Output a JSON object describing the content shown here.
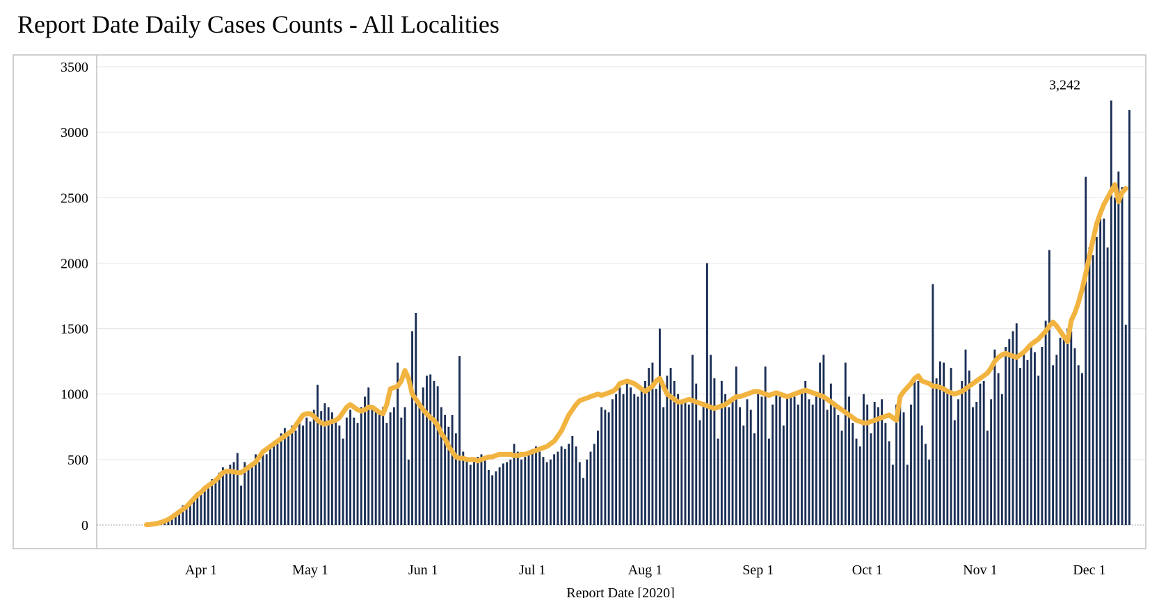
{
  "chart_data": {
    "type": "bar",
    "title": "Report Date Daily Cases Counts - All Localities",
    "xlabel": "Report Date [2020]",
    "ylabel": "",
    "ylim": [
      0,
      3500
    ],
    "y_ticks": [
      0,
      500,
      1000,
      1500,
      2000,
      2500,
      3000,
      3500
    ],
    "x_tick_labels": [
      "Apr 1",
      "May 1",
      "Jun 1",
      "Jul 1",
      "Aug 1",
      "Sep 1",
      "Oct 1",
      "Nov 1",
      "Dec 1"
    ],
    "x_tick_dates": [
      "2020-04-01",
      "2020-05-01",
      "2020-06-01",
      "2020-07-01",
      "2020-08-01",
      "2020-09-01",
      "2020-10-01",
      "2020-11-01",
      "2020-12-01"
    ],
    "start_date": "2020-03-17",
    "end_date": "2020-11-29",
    "grid": true,
    "annotation": {
      "date": "2020-11-25",
      "value": 3242,
      "label": "3,242"
    },
    "colors": {
      "bars": "#1b2f55",
      "line": "#f2b441",
      "grid": "#e6e6e6",
      "axis": "#bfbfbf"
    },
    "series": [
      {
        "type": "bar",
        "values": [
          2,
          3,
          8,
          12,
          20,
          30,
          40,
          60,
          90,
          110,
          150,
          140,
          180,
          210,
          250,
          230,
          280,
          320,
          350,
          330,
          400,
          440,
          390,
          460,
          480,
          550,
          300,
          480,
          430,
          470,
          540,
          480,
          560,
          540,
          600,
          640,
          620,
          700,
          740,
          700,
          760,
          720,
          780,
          760,
          820,
          790,
          880,
          1070,
          870,
          930,
          900,
          860,
          800,
          760,
          660,
          820,
          880,
          820,
          780,
          900,
          980,
          1050,
          900,
          880,
          860,
          900,
          780,
          860,
          900,
          1240,
          820,
          900,
          500,
          1480,
          1620,
          920,
          1050,
          1140,
          1150,
          1100,
          1060,
          900,
          840,
          750,
          840,
          700,
          1290,
          560,
          490,
          460,
          480,
          520,
          540,
          500,
          420,
          380,
          410,
          440,
          470,
          480,
          500,
          620,
          560,
          500,
          520,
          540,
          580,
          600,
          560,
          520,
          480,
          500,
          540,
          560,
          600,
          580,
          620,
          680,
          600,
          480,
          360,
          500,
          560,
          620,
          720,
          900,
          880,
          860,
          960,
          1000,
          1050,
          1000,
          1100,
          1050,
          1000,
          980,
          1040,
          1100,
          1200,
          1240,
          1040,
          1500,
          900,
          1140,
          1200,
          1100,
          1000,
          940,
          960,
          920,
          1300,
          1080,
          800,
          940,
          2000,
          1300,
          1120,
          660,
          1100,
          1000,
          900,
          960,
          1210,
          900,
          760,
          960,
          880,
          700,
          1000,
          980,
          1210,
          660,
          920,
          1020,
          980,
          760,
          1000,
          980,
          980,
          920,
          1040,
          1100,
          960,
          920,
          980,
          1240,
          1300,
          880,
          1080,
          940,
          840,
          720,
          1240,
          980,
          780,
          660,
          600,
          1000,
          920,
          700,
          940,
          900,
          960,
          780,
          640,
          460,
          920,
          1000,
          860,
          460,
          920,
          1120,
          1100,
          760,
          620,
          500,
          1840,
          1120,
          1250,
          1240,
          1040,
          1200,
          800,
          960,
          1100,
          1340,
          1180,
          900,
          940,
          1080,
          1100,
          720,
          960,
          1340,
          1160,
          1000,
          1360,
          1420,
          1480,
          1540,
          1200,
          1320,
          1260,
          1400,
          1320,
          1140,
          1360,
          1560,
          2100,
          1220,
          1300,
          1430,
          1460,
          1500,
          1480,
          1350,
          1220,
          1160,
          2660,
          2120,
          2060,
          2200,
          2340,
          2340,
          2120,
          3242,
          2500,
          2700,
          2580,
          1530,
          3170
        ]
      },
      {
        "type": "line",
        "values": [
          2,
          4,
          8,
          12,
          20,
          30,
          42,
          60,
          80,
          100,
          120,
          140,
          170,
          200,
          230,
          250,
          280,
          300,
          320,
          340,
          370,
          400,
          410,
          410,
          405,
          400,
          400,
          420,
          440,
          460,
          480,
          520,
          560,
          580,
          600,
          620,
          640,
          660,
          680,
          700,
          720,
          760,
          800,
          840,
          850,
          850,
          830,
          800,
          780,
          770,
          780,
          790,
          800,
          820,
          860,
          900,
          920,
          900,
          880,
          870,
          880,
          900,
          900,
          880,
          860,
          850,
          920,
          1040,
          1050,
          1060,
          1100,
          1180,
          1120,
          1000,
          960,
          920,
          880,
          850,
          820,
          800,
          760,
          700,
          660,
          600,
          560,
          520,
          510,
          510,
          500,
          500,
          500,
          490,
          500,
          510,
          520,
          520,
          530,
          540,
          540,
          540,
          540,
          530,
          530,
          540,
          540,
          550,
          560,
          570,
          580,
          590,
          600,
          620,
          640,
          680,
          720,
          780,
          840,
          880,
          920,
          950,
          960,
          970,
          980,
          990,
          1000,
          990,
          1000,
          1010,
          1020,
          1040,
          1080,
          1090,
          1100,
          1090,
          1080,
          1060,
          1040,
          1020,
          1040,
          1060,
          1100,
          1120,
          1060,
          1000,
          980,
          960,
          940,
          940,
          950,
          960,
          950,
          940,
          930,
          920,
          910,
          900,
          890,
          900,
          910,
          920,
          940,
          960,
          980,
          980,
          990,
          1000,
          1010,
          1020,
          1020,
          1010,
          1000,
          990,
          1000,
          1010,
          1000,
          990,
          980,
          990,
          1000,
          1010,
          1020,
          1030,
          1020,
          1010,
          1000,
          990,
          980,
          960,
          940,
          920,
          900,
          880,
          860,
          840,
          820,
          800,
          790,
          780,
          780,
          790,
          800,
          810,
          820,
          830,
          840,
          820,
          800,
          980,
          1020,
          1050,
          1080,
          1120,
          1140,
          1100,
          1090,
          1080,
          1060,
          1060,
          1050,
          1040,
          1020,
          1010,
          1000,
          1010,
          1020,
          1040,
          1060,
          1080,
          1100,
          1120,
          1140,
          1160,
          1200,
          1250,
          1280,
          1300,
          1310,
          1300,
          1290,
          1280,
          1300,
          1320,
          1350,
          1380,
          1400,
          1420,
          1450,
          1480,
          1520,
          1550,
          1520,
          1480,
          1440,
          1400,
          1560,
          1620,
          1700,
          1800,
          1920,
          2050,
          2180,
          2300,
          2380,
          2450,
          2500,
          2550,
          2600,
          2470,
          2540,
          2570
        ]
      }
    ]
  }
}
